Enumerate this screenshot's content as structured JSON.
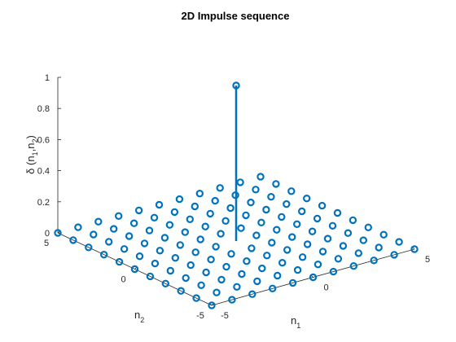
{
  "chart_data": {
    "type": "stem3",
    "title": "2D Impulse sequence",
    "ylabel": "δ (n1,n2)",
    "ylabel_parts": {
      "prefix": "δ (n",
      "sub1": "1",
      "sep": ",n",
      "sub2": "2",
      "suffix": ")"
    },
    "xlabel_n1": {
      "base": "n",
      "sub": "1"
    },
    "xlabel_n2": {
      "base": "n",
      "sub": "2"
    },
    "n1_range": [
      -5,
      5
    ],
    "n2_range": [
      -5,
      5
    ],
    "zlim": [
      0,
      1
    ],
    "z_ticks": [
      "0",
      "0.2",
      "0.4",
      "0.6",
      "0.8",
      "1"
    ],
    "n1_ticks": [
      "-5",
      "0",
      "5"
    ],
    "n2_ticks": [
      "-5",
      "0",
      "5"
    ],
    "impulse": {
      "n1": 0,
      "n2": 0,
      "value": 1
    },
    "other_value": 0,
    "marker": "circle",
    "color": "#0072BD"
  }
}
